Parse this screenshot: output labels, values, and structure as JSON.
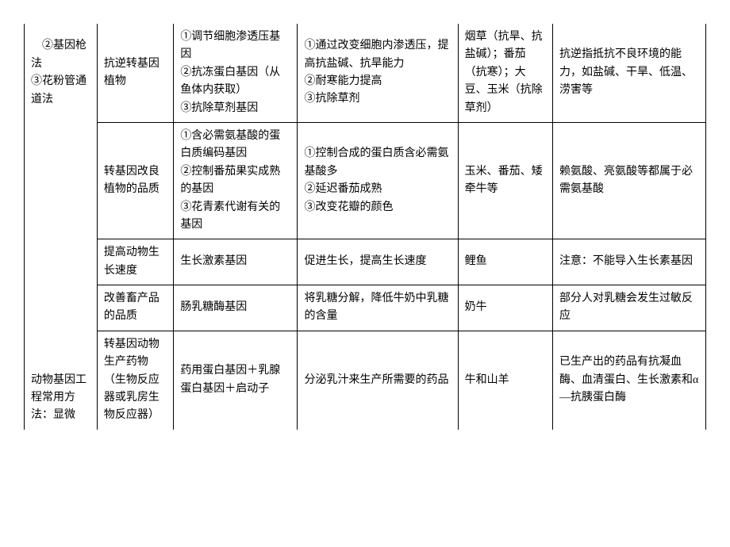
{
  "font_size": 14,
  "text_color": "#000000",
  "border_color": "#000000",
  "background": "#ffffff",
  "rows": [
    {
      "c0": "　②基因枪法\n③花粉管通道法",
      "c1": "抗逆转基因植物",
      "c2": "①调节细胞渗透压基因\n②抗冻蛋白基因（从鱼体内获取）\n③抗除草剂基因",
      "c3": "①通过改变细胞内渗透压，提高抗盐碱、抗旱能力\n②耐寒能力提高\n③抗除草剂",
      "c4": "烟草（抗旱、抗盐碱）；番茄（抗寒）；大豆、玉米（抗除草剂）",
      "c5": "抗逆指抵抗不良环境的能力，如盐碱、干旱、低温、涝害等"
    },
    {
      "c1": "转基因改良植物的品质",
      "c2": "①含必需氨基酸的蛋白质编码基因\n②控制番茄果实成熟的基因\n③花青素代谢有关的基因",
      "c3": "①控制合成的蛋白质含必需氨基酸多\n②延迟番茄成熟\n③改变花瓣的颜色",
      "c4": "玉米、番茄、矮牵牛等",
      "c5": "赖氨酸、亮氨酸等都属于必需氨基酸"
    },
    {
      "c1": "提高动物生长速度",
      "c2": "生长激素基因",
      "c3": "促进生长，提高生长速度",
      "c4": "鲤鱼",
      "c5": "注意：不能导入生长素基因"
    },
    {
      "c1": "改善畜产品的品质",
      "c2": "肠乳糖酶基因",
      "c3": "将乳糖分解，降低牛奶中乳糖的含量",
      "c4": "奶牛",
      "c5": "部分人对乳糖会发生过敏反应"
    },
    {
      "c0": "动物基因工程常用方法：显微",
      "c1": "转基因动物生产药物（生物反应器或乳房生物反应器）",
      "c2": "药用蛋白基因＋乳腺蛋白基因＋启动子",
      "c3": "分泌乳汁来生产所需要的药品",
      "c4": "牛和山羊",
      "c5": "已生产出的药品有抗凝血酶、血清蛋白、生长激素和α—抗胰蛋白酶"
    }
  ]
}
